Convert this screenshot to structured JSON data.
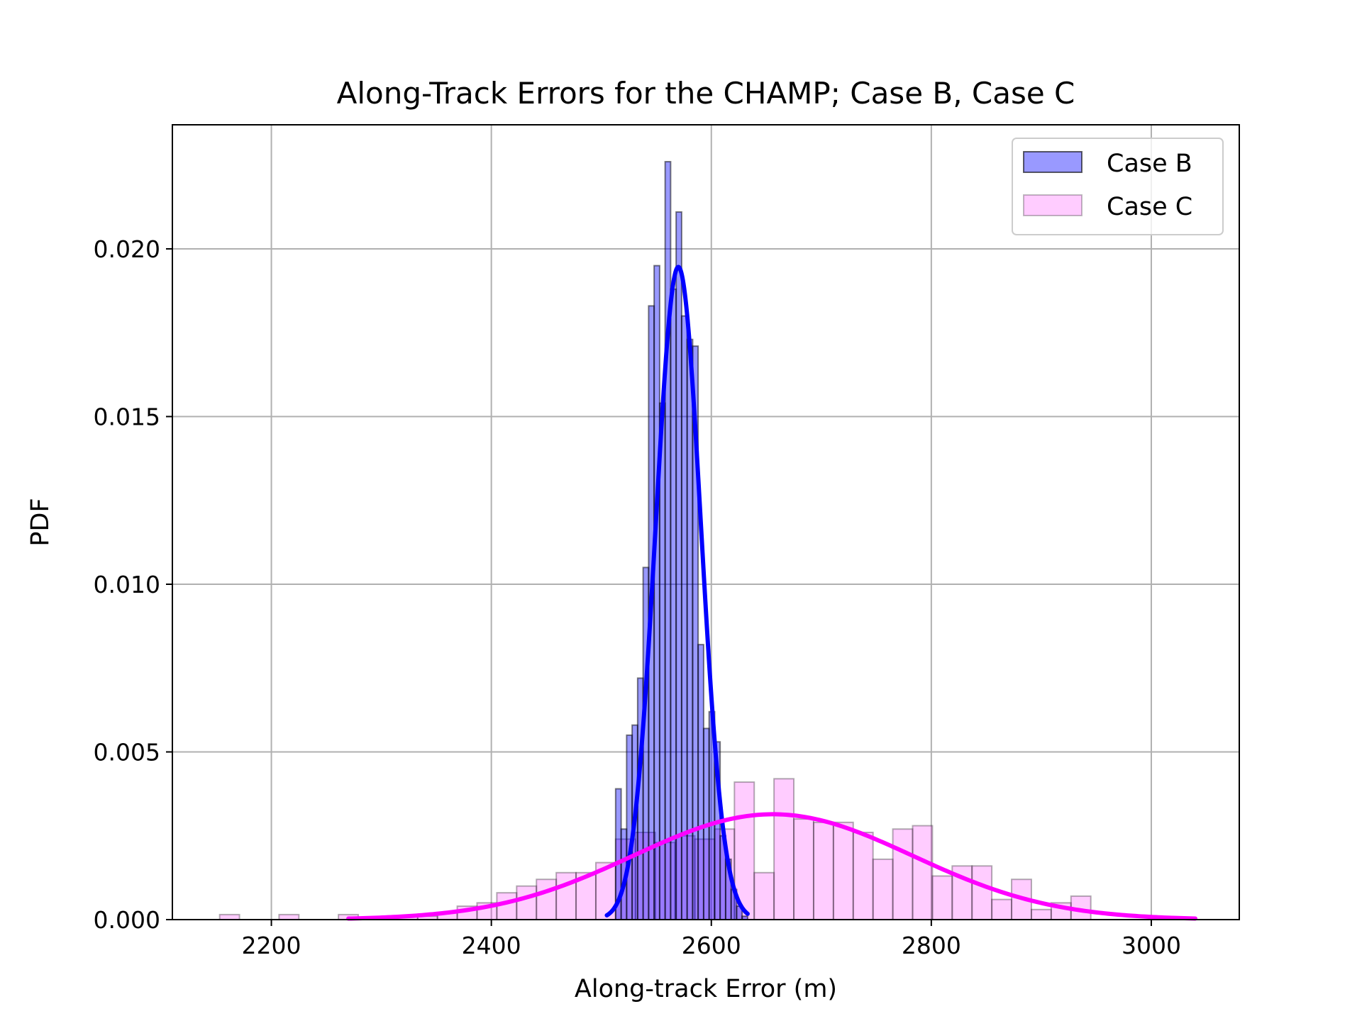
{
  "chart_data": {
    "type": "bar",
    "title": "Along-Track Errors for the CHAMP; Case B, Case C",
    "xlabel": "Along-track Error (m)",
    "ylabel": "PDF",
    "xlim": [
      2110,
      3080
    ],
    "ylim": [
      0,
      0.0237
    ],
    "xticks": [
      2200,
      2400,
      2600,
      2800,
      3000
    ],
    "xtick_labels": [
      "2200",
      "2400",
      "2600",
      "2800",
      "3000"
    ],
    "yticks": [
      0.0,
      0.005,
      0.01,
      0.015,
      0.02
    ],
    "ytick_labels": [
      "0.000",
      "0.005",
      "0.010",
      "0.015",
      "0.020"
    ],
    "grid": true,
    "legend_position": "top-right",
    "series": [
      {
        "name": "Case B",
        "kind": "histogram",
        "color": "#0000ff",
        "fill_opacity": 0.4,
        "edge_color": "#000000",
        "bin_edges": [
          2513,
          2518,
          2523,
          2528,
          2533,
          2538,
          2543,
          2548,
          2553,
          2558,
          2563,
          2568,
          2573,
          2578,
          2583,
          2588,
          2593,
          2598,
          2603,
          2608,
          2613,
          2618,
          2623,
          2628,
          2633
        ],
        "values": [
          0.0039,
          0.0027,
          0.0055,
          0.0058,
          0.0072,
          0.0105,
          0.0183,
          0.0195,
          0.0154,
          0.0226,
          0.0188,
          0.0211,
          0.018,
          0.0173,
          0.0171,
          0.0082,
          0.0057,
          0.0062,
          0.0053,
          0.0025,
          0.0018,
          0.0009,
          0.0004,
          0.0001
        ]
      },
      {
        "name": "Case C",
        "kind": "histogram",
        "color": "#ff00ff",
        "fill_opacity": 0.2,
        "edge_color": "#000000",
        "bin_edges": [
          2153,
          2171,
          2189,
          2207,
          2225,
          2243,
          2261,
          2279,
          2297,
          2315,
          2333,
          2351,
          2369,
          2387,
          2405,
          2423,
          2441,
          2459,
          2477,
          2495,
          2513,
          2531,
          2549,
          2567,
          2585,
          2603,
          2621,
          2639,
          2657,
          2675,
          2693,
          2711,
          2729,
          2747,
          2765,
          2783,
          2801,
          2819,
          2837,
          2855,
          2873,
          2891,
          2909,
          2927,
          2945
        ],
        "values": [
          0.00015,
          0,
          0,
          0.00015,
          0,
          0,
          0.00015,
          0,
          0,
          0.0001,
          0.0001,
          0.0002,
          0.0004,
          0.0005,
          0.0008,
          0.001,
          0.0012,
          0.0014,
          0.0014,
          0.0017,
          0.0024,
          0.0026,
          0.0023,
          0.0025,
          0.0024,
          0.0027,
          0.0041,
          0.0014,
          0.0042,
          0.003,
          0.0029,
          0.0029,
          0.0026,
          0.0018,
          0.0027,
          0.0028,
          0.0013,
          0.0016,
          0.0016,
          0.0006,
          0.0012,
          0.0003,
          0.0005,
          0.0007
        ]
      },
      {
        "name": "Case B",
        "kind": "fit",
        "color": "#0000ff",
        "mean": 2570,
        "std": 20.5,
        "x_range": [
          2505,
          2633
        ]
      },
      {
        "name": "Case C",
        "kind": "fit",
        "color": "#ff00ff",
        "mean": 2656,
        "std": 127,
        "x_range": [
          2270,
          3040
        ]
      }
    ]
  }
}
